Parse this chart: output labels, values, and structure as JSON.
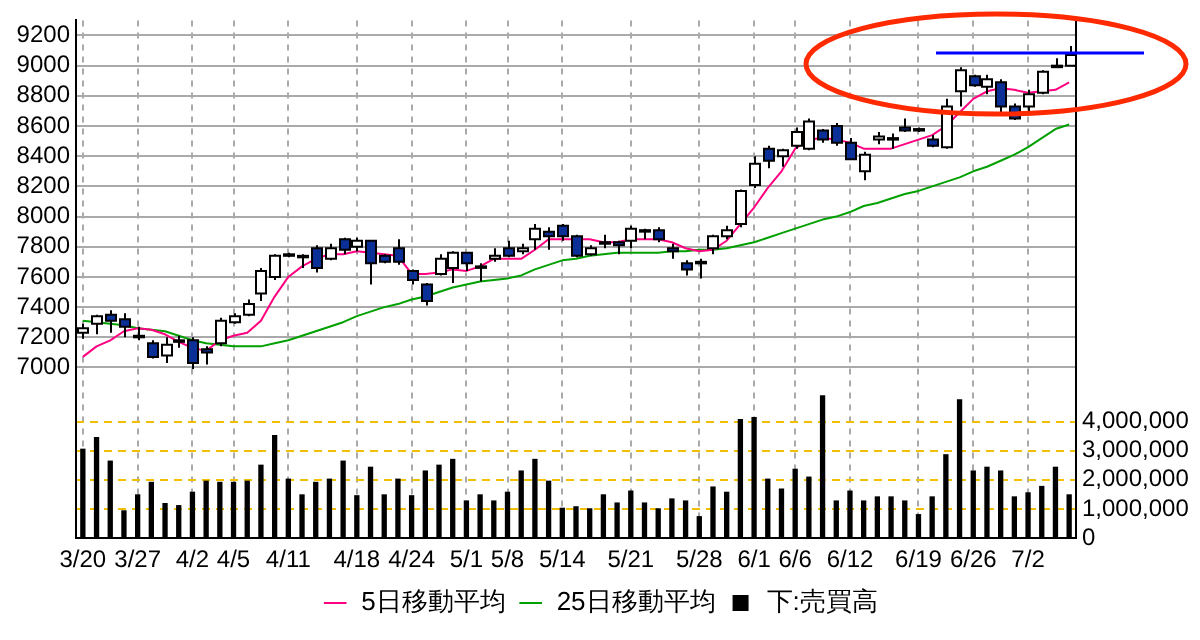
{
  "chart_data": {
    "type": "candlestick",
    "categories": [
      "3/20",
      null,
      null,
      null,
      "3/27",
      null,
      null,
      null,
      "4/2",
      null,
      null,
      "4/5",
      null,
      null,
      null,
      "4/11",
      null,
      null,
      null,
      null,
      "4/18",
      null,
      null,
      null,
      "4/24",
      null,
      null,
      null,
      "5/1",
      null,
      null,
      "5/8",
      null,
      null,
      null,
      "5/14",
      null,
      null,
      null,
      null,
      "5/21",
      null,
      null,
      null,
      null,
      "5/28",
      null,
      null,
      null,
      "6/1",
      null,
      null,
      "6/6",
      null,
      null,
      null,
      "6/12",
      null,
      null,
      null,
      null,
      "6/19",
      null,
      null,
      null,
      "6/26",
      null,
      null,
      null,
      "7/2",
      null,
      null,
      null
    ],
    "ohlc": [
      [
        7230,
        7290,
        7190,
        7260
      ],
      [
        7290,
        7350,
        7220,
        7340
      ],
      [
        7350,
        7380,
        7230,
        7310
      ],
      [
        7320,
        7360,
        7200,
        7270
      ],
      [
        7210,
        7270,
        7180,
        7200
      ],
      [
        7160,
        7180,
        7060,
        7070
      ],
      [
        7080,
        7200,
        7030,
        7150
      ],
      [
        7170,
        7210,
        7130,
        7180
      ],
      [
        7180,
        7200,
        6990,
        7030
      ],
      [
        7120,
        7140,
        7020,
        7100
      ],
      [
        7160,
        7330,
        7140,
        7310
      ],
      [
        7300,
        7360,
        7290,
        7340
      ],
      [
        7350,
        7450,
        7340,
        7420
      ],
      [
        7490,
        7660,
        7440,
        7640
      ],
      [
        7600,
        7750,
        7580,
        7740
      ],
      [
        7750,
        7760,
        7730,
        7740
      ],
      [
        7740,
        7750,
        7660,
        7730
      ],
      [
        7790,
        7810,
        7630,
        7660
      ],
      [
        7720,
        7820,
        7710,
        7790
      ],
      [
        7850,
        7860,
        7750,
        7780
      ],
      [
        7800,
        7860,
        7770,
        7840
      ],
      [
        7840,
        7840,
        7550,
        7690
      ],
      [
        7740,
        7750,
        7690,
        7700
      ],
      [
        7790,
        7850,
        7680,
        7700
      ],
      [
        7640,
        7650,
        7550,
        7580
      ],
      [
        7550,
        7560,
        7410,
        7440
      ],
      [
        7620,
        7750,
        7610,
        7720
      ],
      [
        7660,
        7770,
        7560,
        7760
      ],
      [
        7760,
        7760,
        7640,
        7690
      ],
      [
        7670,
        7690,
        7570,
        7660
      ],
      [
        7720,
        7790,
        7700,
        7740
      ],
      [
        7790,
        7840,
        7730,
        7740
      ],
      [
        7770,
        7820,
        7750,
        7790
      ],
      [
        7850,
        7950,
        7780,
        7920
      ],
      [
        7900,
        7930,
        7780,
        7870
      ],
      [
        7940,
        7950,
        7840,
        7870
      ],
      [
        7870,
        7880,
        7730,
        7740
      ],
      [
        7750,
        7810,
        7740,
        7790
      ],
      [
        7830,
        7880,
        7790,
        7820
      ],
      [
        7830,
        7840,
        7750,
        7810
      ],
      [
        7840,
        7940,
        7790,
        7920
      ],
      [
        7910,
        7920,
        7850,
        7900
      ],
      [
        7910,
        7930,
        7830,
        7850
      ],
      [
        7790,
        7820,
        7720,
        7770
      ],
      [
        7690,
        7710,
        7610,
        7650
      ],
      [
        7700,
        7720,
        7590,
        7690
      ],
      [
        7790,
        7880,
        7750,
        7870
      ],
      [
        7870,
        7940,
        7850,
        7910
      ],
      [
        7950,
        8180,
        7930,
        8170
      ],
      [
        8210,
        8400,
        8190,
        8350
      ],
      [
        8450,
        8470,
        8320,
        8370
      ],
      [
        8400,
        8450,
        8330,
        8440
      ],
      [
        8470,
        8590,
        8450,
        8560
      ],
      [
        8450,
        8650,
        8440,
        8630
      ],
      [
        8570,
        8580,
        8490,
        8510
      ],
      [
        8600,
        8620,
        8470,
        8490
      ],
      [
        8490,
        8520,
        8380,
        8380
      ],
      [
        8300,
        8430,
        8240,
        8410
      ],
      [
        8510,
        8560,
        8480,
        8530
      ],
      [
        8520,
        8550,
        8450,
        8510
      ],
      [
        8590,
        8650,
        8560,
        8570
      ],
      [
        8580,
        8590,
        8560,
        8570
      ],
      [
        8510,
        8540,
        8460,
        8470
      ],
      [
        8460,
        8780,
        8450,
        8730
      ],
      [
        8830,
        8990,
        8730,
        8970
      ],
      [
        8930,
        8940,
        8860,
        8870
      ],
      [
        8860,
        8940,
        8810,
        8910
      ],
      [
        8890,
        8910,
        8680,
        8730
      ],
      [
        8730,
        8750,
        8640,
        8650
      ],
      [
        8730,
        8840,
        8680,
        8810
      ],
      [
        8820,
        8970,
        8810,
        8960
      ],
      [
        8990,
        9050,
        8990,
        9000
      ],
      [
        9000,
        9130,
        9000,
        9070
      ]
    ],
    "series": [
      {
        "name": "5日移動平均",
        "type": "line",
        "color": "#ff0080",
        "values": [
          7070,
          7140,
          7180,
          7240,
          7260,
          7250,
          7220,
          7170,
          7130,
          7110,
          7180,
          7210,
          7230,
          7310,
          7470,
          7600,
          7670,
          7720,
          7750,
          7750,
          7770,
          7760,
          7750,
          7740,
          7620,
          7620,
          7630,
          7650,
          7640,
          7670,
          7720,
          7720,
          7720,
          7780,
          7850,
          7850,
          7850,
          7850,
          7830,
          7830,
          7850,
          7850,
          7850,
          7830,
          7790,
          7770,
          7780,
          7840,
          7950,
          8060,
          8190,
          8300,
          8450,
          8510,
          8520,
          8510,
          8490,
          8450,
          8450,
          8450,
          8480,
          8510,
          8540,
          8600,
          8690,
          8780,
          8830,
          8850,
          8840,
          8820,
          8830,
          8840,
          8890
        ]
      },
      {
        "name": "25日移動平均",
        "type": "line",
        "color": "#00a000",
        "values": [
          7310,
          7300,
          7290,
          7280,
          7260,
          7250,
          7240,
          7210,
          7180,
          7160,
          7150,
          7140,
          7140,
          7140,
          7160,
          7180,
          7210,
          7240,
          7270,
          7300,
          7340,
          7370,
          7400,
          7420,
          7450,
          7470,
          7500,
          7530,
          7550,
          7570,
          7580,
          7590,
          7610,
          7650,
          7680,
          7710,
          7720,
          7740,
          7750,
          7760,
          7760,
          7760,
          7760,
          7770,
          7770,
          7780,
          7780,
          7790,
          7810,
          7830,
          7860,
          7890,
          7920,
          7950,
          7980,
          8000,
          8030,
          8070,
          8090,
          8120,
          8150,
          8170,
          8200,
          8230,
          8260,
          8300,
          8330,
          8370,
          8410,
          8460,
          8520,
          8580,
          8610
        ]
      },
      {
        "name": "下:売買高",
        "type": "bar",
        "color": "#000000",
        "axis": "y2",
        "values": [
          3050000,
          3450000,
          2640000,
          930000,
          1480000,
          1910000,
          1180000,
          1110000,
          1570000,
          1950000,
          1910000,
          1910000,
          1950000,
          2500000,
          3520000,
          2020000,
          1480000,
          1910000,
          2020000,
          2640000,
          1450000,
          2430000,
          1480000,
          2020000,
          1450000,
          2300000,
          2500000,
          2700000,
          1270000,
          1480000,
          1270000,
          1570000,
          2300000,
          2700000,
          1950000,
          1020000,
          1070000,
          1000000,
          1480000,
          1200000,
          1610000,
          1200000,
          1000000,
          1340000,
          1270000,
          730000,
          1750000,
          1570000,
          4070000,
          4140000,
          2020000,
          1680000,
          2360000,
          2090000,
          4890000,
          1270000,
          1610000,
          1270000,
          1410000,
          1410000,
          1270000,
          800000,
          1410000,
          2860000,
          4750000,
          2300000,
          2430000,
          2300000,
          1410000,
          1550000,
          1770000,
          2430000,
          1480000
        ]
      }
    ],
    "ylim": [
      5870,
      9300
    ],
    "yticks": [
      7000,
      7200,
      7400,
      7600,
      7800,
      8000,
      8200,
      8400,
      8600,
      8800,
      9000,
      9200
    ],
    "y2lim": [
      0,
      17800000
    ],
    "y2ticks": [
      0,
      {
        "value": 1000000,
        "label": "1,000,000"
      },
      {
        "value": 2000000,
        "label": "2,000,000"
      },
      {
        "value": 3000000,
        "label": "3,000,000"
      },
      {
        "value": 4000000,
        "label": "4,000,000"
      }
    ],
    "grid": true,
    "legend": "bottom",
    "marker": "none"
  }
}
